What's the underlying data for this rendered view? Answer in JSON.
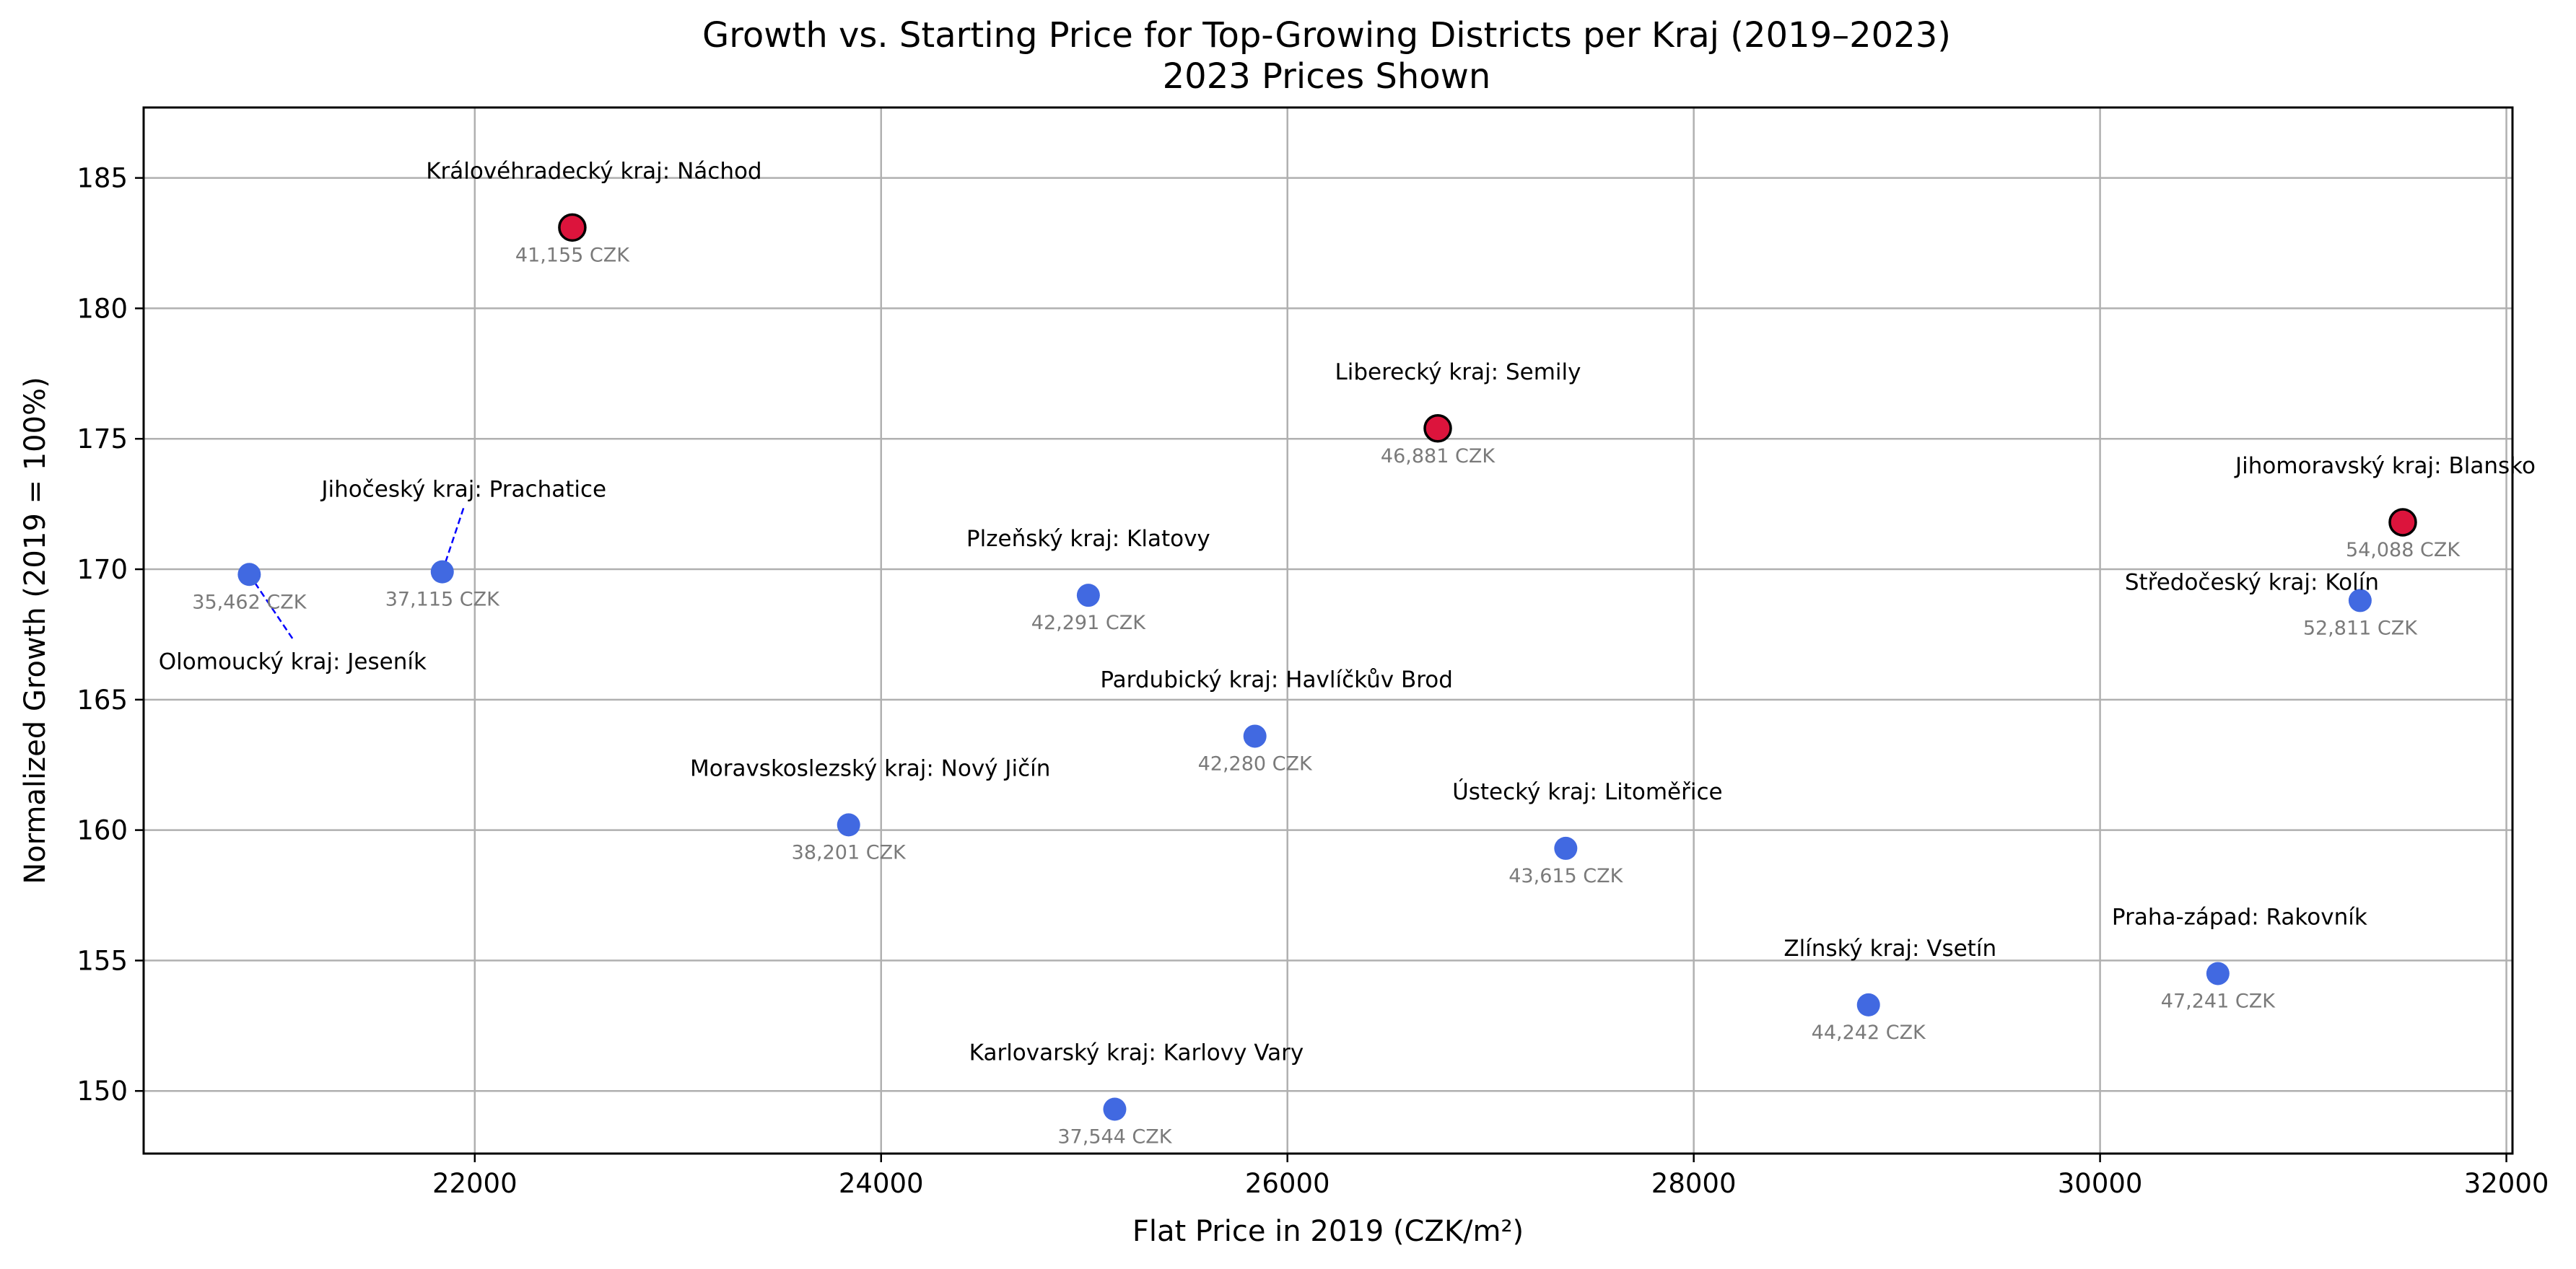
{
  "chart_data": {
    "type": "scatter",
    "title": "Growth vs. Starting Price for Top-Growing Districts per Kraj (2019–2023)",
    "subtitle": "2023 Prices Shown",
    "xlabel": "Flat Price in 2019 (CZK/m²)",
    "ylabel": "Normalized Growth (2019 = 100%)",
    "xlim": [
      20370,
      32030
    ],
    "ylim": [
      147.6,
      187.7
    ],
    "xticks": [
      22000,
      24000,
      26000,
      28000,
      30000,
      32000
    ],
    "yticks": [
      150,
      155,
      160,
      165,
      170,
      175,
      180,
      185
    ],
    "grid": true,
    "colors": {
      "normal": "#4169e1",
      "highlight": "#dc143c",
      "leader": "#0000ff",
      "price_text": "#7a7a7a"
    },
    "points": [
      {
        "label": "Královéhradecký kraj: Náchod",
        "x": 22480,
        "y": 183.1,
        "price_2023": "41,155 CZK",
        "highlight": true
      },
      {
        "label": "Liberecký kraj: Semily",
        "x": 26740,
        "y": 175.4,
        "price_2023": "46,881 CZK",
        "highlight": true
      },
      {
        "label": "Jihomoravský kraj: Blansko",
        "x": 31490,
        "y": 171.8,
        "price_2023": "54,088 CZK",
        "highlight": true
      },
      {
        "label": "Jihočeský kraj: Prachatice",
        "x": 21840,
        "y": 169.9,
        "price_2023": "37,115 CZK",
        "highlight": false
      },
      {
        "label": "Olomoucký kraj: Jeseník",
        "x": 20890,
        "y": 169.8,
        "price_2023": "35,462 CZK",
        "highlight": false
      },
      {
        "label": "Plzeňský kraj: Klatovy",
        "x": 25020,
        "y": 169.0,
        "price_2023": "42,291 CZK",
        "highlight": false
      },
      {
        "label": "Středočeský kraj: Kolín",
        "x": 31280,
        "y": 168.8,
        "price_2023": "52,811 CZK",
        "highlight": false
      },
      {
        "label": "Pardubický kraj: Havlíčkův Brod",
        "x": 25840,
        "y": 163.6,
        "price_2023": "42,280 CZK",
        "highlight": false
      },
      {
        "label": "Moravskoslezský kraj: Nový Jičín",
        "x": 23840,
        "y": 160.2,
        "price_2023": "38,201 CZK",
        "highlight": false
      },
      {
        "label": "Ústecký kraj: Litoměřice",
        "x": 27370,
        "y": 159.3,
        "price_2023": "43,615 CZK",
        "highlight": false
      },
      {
        "label": "Praha-západ: Rakovník",
        "x": 30580,
        "y": 154.5,
        "price_2023": "47,241 CZK",
        "highlight": false
      },
      {
        "label": "Zlínský kraj: Vsetín",
        "x": 28860,
        "y": 153.3,
        "price_2023": "44,242 CZK",
        "highlight": false
      },
      {
        "label": "Karlovarský kraj: Karlovy Vary",
        "x": 25150,
        "y": 149.3,
        "price_2023": "37,544 CZK",
        "highlight": false
      }
    ]
  }
}
